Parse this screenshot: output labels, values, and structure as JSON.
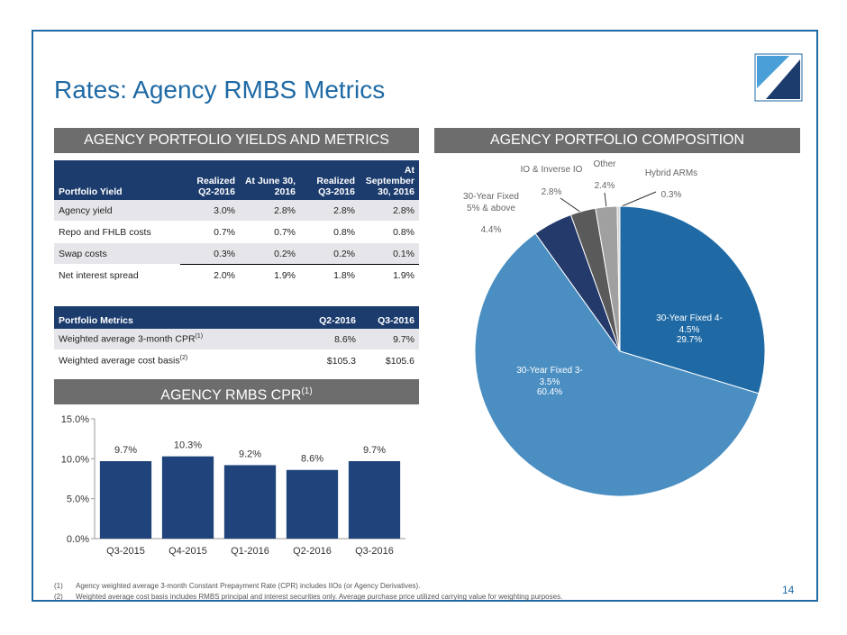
{
  "header": {
    "title": "Rates: Agency RMBS Metrics",
    "page_number": "14"
  },
  "yields_section": {
    "heading": "AGENCY PORTFOLIO YIELDS AND METRICS",
    "yield_table": {
      "columns": [
        "Portfolio Yield",
        "Realized Q2-2016",
        "At June 30, 2016",
        "Realized Q3-2016",
        "At September 30, 2016"
      ],
      "rows": [
        [
          "Agency yield",
          "3.0%",
          "2.8%",
          "2.8%",
          "2.8%"
        ],
        [
          "Repo and FHLB costs",
          "0.7%",
          "0.7%",
          "0.8%",
          "0.8%"
        ],
        [
          "Swap costs",
          "0.3%",
          "0.2%",
          "0.2%",
          "0.1%"
        ],
        [
          "Net interest spread",
          "2.0%",
          "1.9%",
          "1.8%",
          "1.9%"
        ]
      ]
    },
    "metrics_table": {
      "columns": [
        "Portfolio Metrics",
        "Q2-2016",
        "Q3-2016"
      ],
      "rows": [
        {
          "label": "Weighted average 3-month CPR",
          "note": "(1)",
          "values": [
            "8.6%",
            "9.7%"
          ]
        },
        {
          "label": "Weighted average cost basis",
          "note": "(2)",
          "values": [
            "$105.3",
            "$105.6"
          ]
        }
      ]
    }
  },
  "composition_section": {
    "heading": "AGENCY PORTFOLIO COMPOSITION"
  },
  "chart_data": [
    {
      "type": "bar",
      "title": "AGENCY RMBS CPR",
      "title_note": "(1)",
      "categories": [
        "Q3-2015",
        "Q4-2015",
        "Q1-2016",
        "Q2-2016",
        "Q3-2016"
      ],
      "values": [
        9.7,
        10.3,
        9.2,
        8.6,
        9.7
      ],
      "value_labels": [
        "9.7%",
        "10.3%",
        "9.2%",
        "8.6%",
        "9.7%"
      ],
      "color": "#1f437a",
      "ylim": [
        0,
        15
      ],
      "yticks": [
        {
          "value": 0,
          "label": "0.0%"
        },
        {
          "value": 5,
          "label": "5.0%"
        },
        {
          "value": 10,
          "label": "10.0%"
        },
        {
          "value": 15,
          "label": "15.0%"
        }
      ]
    },
    {
      "type": "pie",
      "categories": [
        "30-Year Fixed 4-4.5%",
        "30-Year Fixed 3-3.5%",
        "30-Year Fixed 5% & above",
        "IO & Inverse IO",
        "Other",
        "Hybrid ARMs"
      ],
      "values": [
        29.7,
        60.4,
        4.4,
        2.8,
        2.4,
        0.3
      ],
      "value_labels": [
        "29.7%",
        "60.4%",
        "4.4%",
        "2.8%",
        "2.4%",
        "0.3%"
      ],
      "colors": [
        "#1f6aa5",
        "#4a8ec2",
        "#243a6b",
        "#5a5a5a",
        "#a0a0a0",
        "#d0d0d0"
      ]
    }
  ],
  "footnotes": [
    {
      "marker": "(1)",
      "text": "Agency weighted average 3-month Constant Prepayment Rate (CPR) includes IIOs (or Agency Derivatives)."
    },
    {
      "marker": "(2)",
      "text": "Weighted average cost basis includes RMBS principal and interest securities only.  Average purchase price utilized carrying value for weighting purposes."
    }
  ]
}
